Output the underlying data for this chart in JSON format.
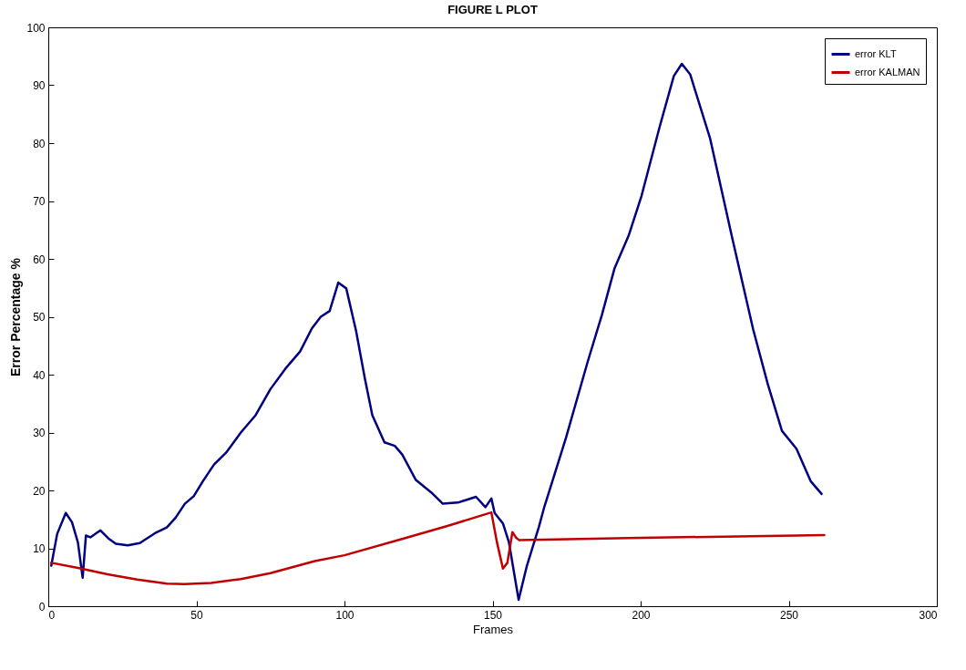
{
  "chart_data": {
    "type": "line",
    "title": "FIGURE L PLOT",
    "xlabel": "Frames",
    "ylabel": "Error Percentage %",
    "xlim": [
      0,
      300
    ],
    "xticks": [
      0,
      50,
      100,
      150,
      200,
      250,
      300
    ],
    "ylim": [
      0,
      100
    ],
    "yticks": [
      0,
      10,
      20,
      30,
      40,
      50,
      60,
      70,
      80,
      90,
      100
    ],
    "grid": false,
    "legend": "top right",
    "line_style": "solid",
    "marker": "none",
    "series": [
      {
        "name": "error KLT",
        "color": "#000080",
        "x": [
          1,
          3,
          5.9,
          8,
          10,
          11.6,
          12.7,
          14.2,
          17.6,
          20.3,
          22.8,
          26.8,
          30.9,
          36,
          40,
          43,
          46.1,
          49.1,
          52.2,
          56,
          60,
          65,
          70,
          75,
          80,
          85,
          89,
          92,
          95,
          97.9,
          100.6,
          103.9,
          106.9,
          109.4,
          113.5,
          117,
          119.5,
          124.1,
          129.2,
          133.2,
          138.3,
          144.4,
          147.6,
          149.6,
          150.7,
          153.5,
          155.5,
          158.8,
          161.6,
          165.7,
          167.5,
          174.8,
          182.1,
          186.9,
          191.2,
          196,
          200.3,
          206.4,
          211.2,
          213.9,
          216.7,
          223.4,
          230.7,
          238,
          242.9,
          247.7,
          252.6,
          257.4,
          261.1
        ],
        "values": [
          7,
          12.5,
          16.1,
          14.5,
          11,
          4.9,
          12.2,
          11.9,
          13.1,
          11.7,
          10.8,
          10.5,
          10.9,
          12.6,
          13.6,
          15.3,
          17.7,
          19,
          21.6,
          24.5,
          26.5,
          30,
          33,
          37.5,
          41,
          44,
          48,
          50,
          51,
          55.9,
          54.9,
          47.6,
          39.3,
          33,
          28.3,
          27.7,
          26.2,
          21.8,
          19.7,
          17.7,
          17.9,
          18.9,
          17.1,
          18.6,
          16.1,
          14.3,
          11.1,
          1.1,
          7,
          13.8,
          17.2,
          29.1,
          42.2,
          50.3,
          58.4,
          64.1,
          70.9,
          82.8,
          91.6,
          93.7,
          91.9,
          80.9,
          64.1,
          47.8,
          38.4,
          30.3,
          27.2,
          21.6,
          19.4
        ]
      },
      {
        "name": "error KALMAN",
        "color": "#c00000",
        "x": [
          1,
          10,
          20,
          30,
          40,
          46,
          55,
          65,
          75,
          90,
          100,
          120,
          135,
          149.6,
          151.5,
          153.5,
          155,
          156.7,
          158,
          159,
          200,
          262
        ],
        "values": [
          7.5,
          6.6,
          5.5,
          4.6,
          3.9,
          3.8,
          4,
          4.7,
          5.7,
          7.8,
          8.8,
          11.7,
          13.9,
          16.2,
          11,
          6.5,
          7.5,
          12.8,
          11.8,
          11.4,
          11.8,
          12.3
        ]
      }
    ]
  }
}
